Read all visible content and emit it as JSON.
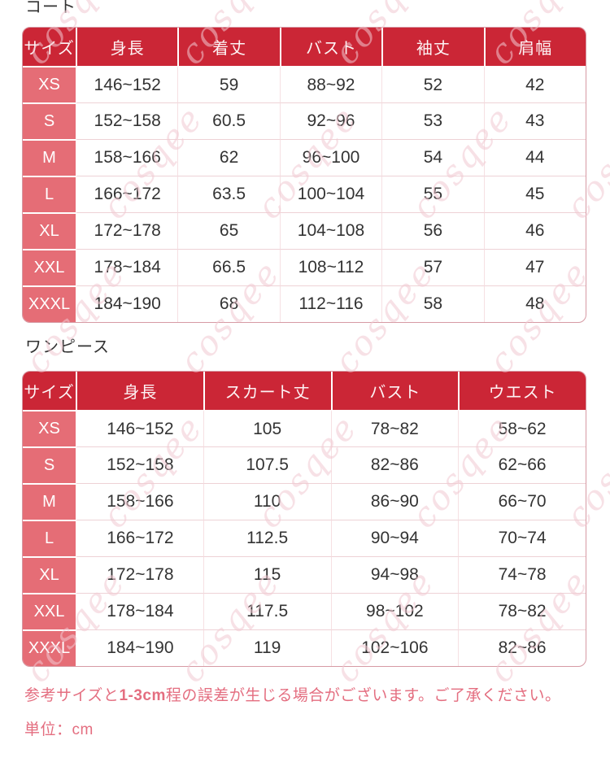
{
  "colors": {
    "header_bg": "#cb2636",
    "header_text": "#fdf3f4",
    "size_col_bg": "#e56d76",
    "table_border": "#d69aa4",
    "row_line": "#eed2d6",
    "col_line": "#f6e0e3",
    "note_color": "#e46e80",
    "watermark_color": "#f2c9d2",
    "body_text": "#333333"
  },
  "watermark": {
    "text": "cosqee"
  },
  "tables": [
    {
      "title": "コート",
      "headers": [
        "サイズ",
        "身長",
        "着丈",
        "バスト",
        "袖丈",
        "肩幅"
      ],
      "rows": [
        [
          "XS",
          "146~152",
          "59",
          "88~92",
          "52",
          "42"
        ],
        [
          "S",
          "152~158",
          "60.5",
          "92~96",
          "53",
          "43"
        ],
        [
          "M",
          "158~166",
          "62",
          "96~100",
          "54",
          "44"
        ],
        [
          "L",
          "166~172",
          "63.5",
          "100~104",
          "55",
          "45"
        ],
        [
          "XL",
          "172~178",
          "65",
          "104~108",
          "56",
          "46"
        ],
        [
          "XXL",
          "178~184",
          "66.5",
          "108~112",
          "57",
          "47"
        ],
        [
          "XXXL",
          "184~190",
          "68",
          "112~116",
          "58",
          "48"
        ]
      ]
    },
    {
      "title": "ワンピース",
      "headers": [
        "サイズ",
        "身長",
        "スカート丈",
        "バスト",
        "ウエスト"
      ],
      "rows": [
        [
          "XS",
          "146~152",
          "105",
          "78~82",
          "58~62"
        ],
        [
          "S",
          "152~158",
          "107.5",
          "82~86",
          "62~66"
        ],
        [
          "M",
          "158~166",
          "110",
          "86~90",
          "66~70"
        ],
        [
          "L",
          "166~172",
          "112.5",
          "90~94",
          "70~74"
        ],
        [
          "XL",
          "172~178",
          "115",
          "94~98",
          "74~78"
        ],
        [
          "XXL",
          "178~184",
          "117.5",
          "98~102",
          "78~82"
        ],
        [
          "XXXL",
          "184~190",
          "119",
          "102~106",
          "82~86"
        ]
      ]
    }
  ],
  "notes": {
    "tolerance_pre": "参考サイズと",
    "tolerance_range": "1-3cm",
    "tolerance_post": "程の誤差が生じる場合がございます。ご了承ください。",
    "unit": "単位：cm"
  }
}
